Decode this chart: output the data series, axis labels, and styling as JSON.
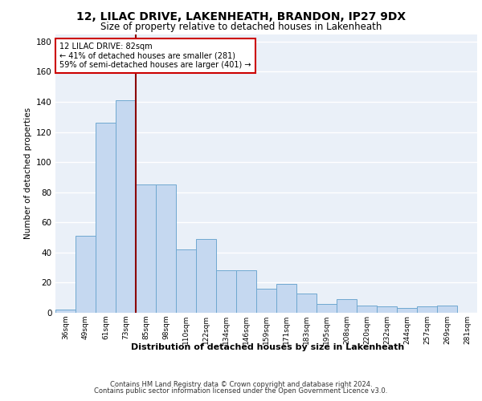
{
  "title1": "12, LILAC DRIVE, LAKENHEATH, BRANDON, IP27 9DX",
  "title2": "Size of property relative to detached houses in Lakenheath",
  "xlabel": "Distribution of detached houses by size in Lakenheath",
  "ylabel": "Number of detached properties",
  "bar_labels": [
    "36sqm",
    "49sqm",
    "61sqm",
    "73sqm",
    "85sqm",
    "98sqm",
    "110sqm",
    "122sqm",
    "134sqm",
    "146sqm",
    "159sqm",
    "171sqm",
    "183sqm",
    "195sqm",
    "208sqm",
    "220sqm",
    "232sqm",
    "244sqm",
    "257sqm",
    "269sqm",
    "281sqm"
  ],
  "bar_values": [
    2,
    51,
    126,
    141,
    85,
    85,
    42,
    49,
    28,
    28,
    16,
    19,
    13,
    6,
    9,
    5,
    4,
    3,
    4,
    5,
    0
  ],
  "bar_color": "#c5d8f0",
  "bar_edge_color": "#6fa8d0",
  "vline_x": 3.5,
  "vline_color": "#8b0000",
  "annotation_title": "12 LILAC DRIVE: 82sqm",
  "annotation_line1": "← 41% of detached houses are smaller (281)",
  "annotation_line2": "59% of semi-detached houses are larger (401) →",
  "annotation_box_color": "#ffffff",
  "annotation_box_edge": "#cc0000",
  "ylim": [
    0,
    185
  ],
  "yticks": [
    0,
    20,
    40,
    60,
    80,
    100,
    120,
    140,
    160,
    180
  ],
  "background_color": "#eaf0f8",
  "grid_color": "#ffffff",
  "footer1": "Contains HM Land Registry data © Crown copyright and database right 2024.",
  "footer2": "Contains public sector information licensed under the Open Government Licence v3.0."
}
